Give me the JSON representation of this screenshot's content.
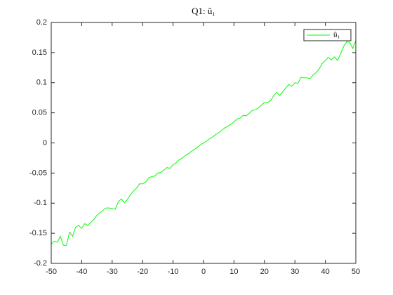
{
  "chart_data": {
    "type": "line",
    "title": "Q1:  û₁",
    "x": [
      -50,
      -49,
      -48,
      -47,
      -46,
      -45,
      -44,
      -43,
      -42,
      -41,
      -40,
      -39,
      -38,
      -37,
      -36,
      -35,
      -34,
      -33,
      -32,
      -31,
      -30,
      -29,
      -28,
      -27,
      -26,
      -25,
      -24,
      -23,
      -22,
      -21,
      -20,
      -19,
      -18,
      -17,
      -16,
      -15,
      -14,
      -13,
      -12,
      -11,
      -10,
      -9,
      -8,
      -7,
      -6,
      -5,
      -4,
      -3,
      -2,
      -1,
      0,
      1,
      2,
      3,
      4,
      5,
      6,
      7,
      8,
      9,
      10,
      11,
      12,
      13,
      14,
      15,
      16,
      17,
      18,
      19,
      20,
      21,
      22,
      23,
      24,
      25,
      26,
      27,
      28,
      29,
      30,
      31,
      32,
      33,
      34,
      35,
      36,
      37,
      38,
      39,
      40,
      41,
      42,
      43,
      44,
      45,
      46,
      47,
      48,
      49,
      50
    ],
    "series": [
      {
        "name": "û₁",
        "color": "#00ff00",
        "values": [
          -0.168,
          -0.163,
          -0.165,
          -0.155,
          -0.17,
          -0.17,
          -0.148,
          -0.155,
          -0.14,
          -0.137,
          -0.142,
          -0.134,
          -0.137,
          -0.132,
          -0.127,
          -0.12,
          -0.116,
          -0.112,
          -0.108,
          -0.108,
          -0.109,
          -0.11,
          -0.098,
          -0.093,
          -0.099,
          -0.094,
          -0.086,
          -0.08,
          -0.075,
          -0.068,
          -0.068,
          -0.065,
          -0.058,
          -0.056,
          -0.055,
          -0.05,
          -0.049,
          -0.045,
          -0.041,
          -0.042,
          -0.036,
          -0.033,
          -0.028,
          -0.025,
          -0.021,
          -0.018,
          -0.014,
          -0.011,
          -0.007,
          -0.003,
          0,
          0.003,
          0.007,
          0.01,
          0.014,
          0.017,
          0.021,
          0.025,
          0.028,
          0.031,
          0.035,
          0.04,
          0.041,
          0.046,
          0.045,
          0.049,
          0.054,
          0.055,
          0.058,
          0.063,
          0.067,
          0.067,
          0.07,
          0.078,
          0.084,
          0.079,
          0.085,
          0.091,
          0.097,
          0.094,
          0.1,
          0.099,
          0.109,
          0.108,
          0.108,
          0.107,
          0.113,
          0.117,
          0.123,
          0.132,
          0.137,
          0.142,
          0.138,
          0.143,
          0.137,
          0.148,
          0.16,
          0.168,
          0.167,
          0.157,
          0.17
        ]
      }
    ],
    "xlim": [
      -50,
      50
    ],
    "xticks": [
      -50,
      -40,
      -30,
      -20,
      -10,
      0,
      10,
      20,
      30,
      40,
      50
    ],
    "ylim": [
      -0.2,
      0.2
    ],
    "yticks": [
      -0.2,
      -0.15,
      -0.1,
      -0.05,
      0,
      0.05,
      0.1,
      0.15,
      0.2
    ],
    "grid": false,
    "legend": "northeast"
  }
}
